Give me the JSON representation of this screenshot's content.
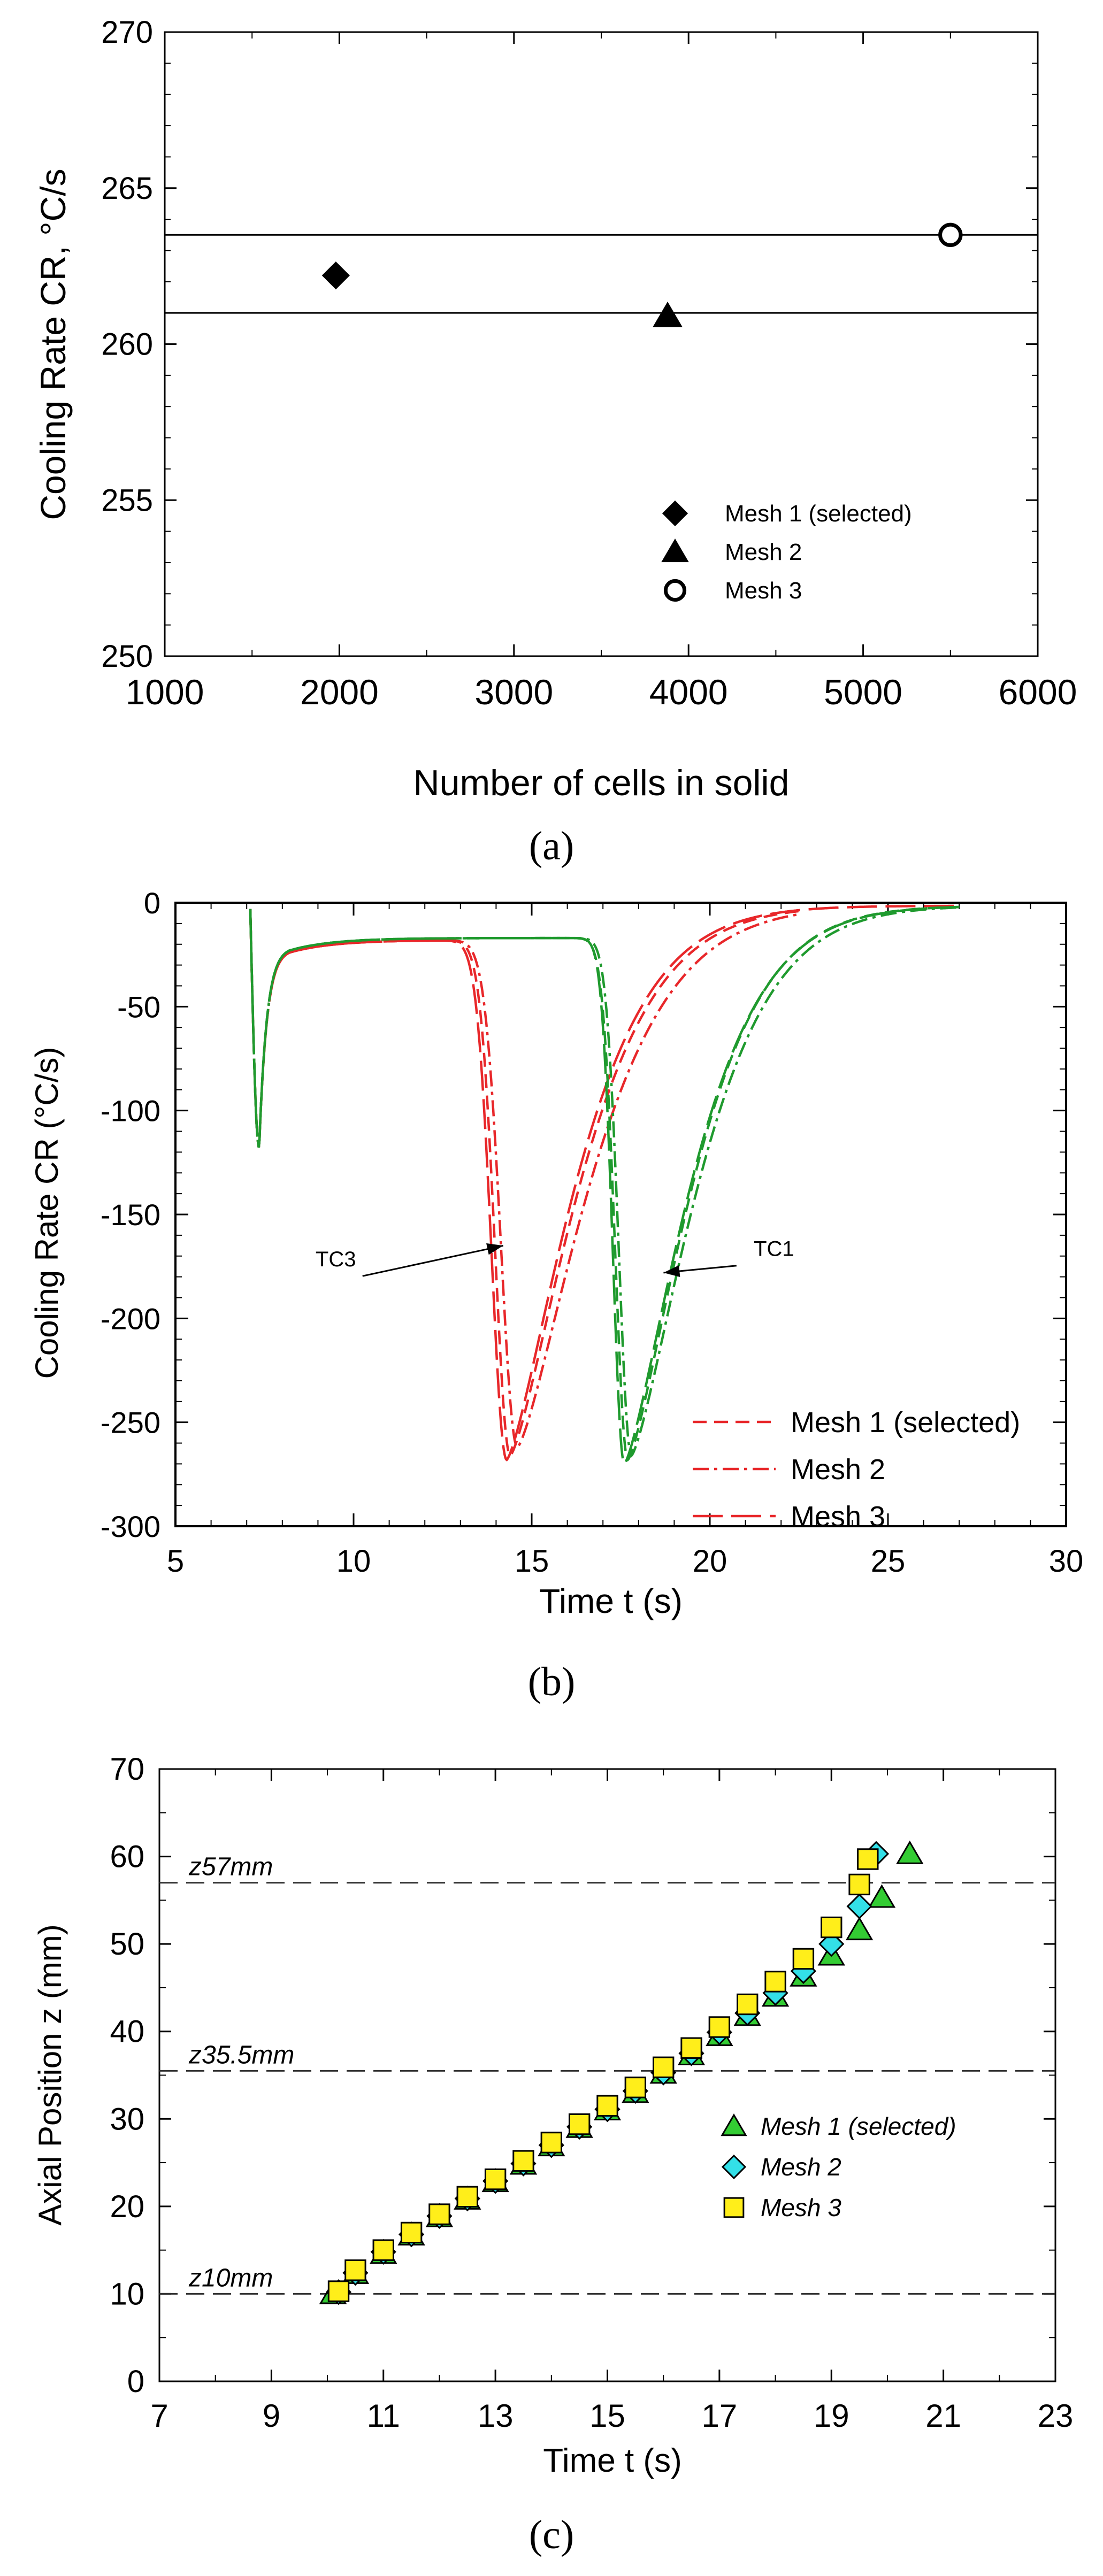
{
  "chart_data": [
    {
      "type": "scatter",
      "caption": "(a)",
      "xlabel": "Number of cells in solid",
      "ylabel": "Cooling Rate  CR,  °C/s",
      "xlim": [
        1000,
        6000
      ],
      "ylim": [
        250,
        270
      ],
      "xticks": [
        1000,
        2000,
        3000,
        4000,
        5000,
        6000
      ],
      "yticks": [
        250,
        255,
        260,
        265,
        270
      ],
      "reference_lines": [
        263.5,
        261.0
      ],
      "legend_position": "bottom-right",
      "series": [
        {
          "name": "Mesh 1 (selected)",
          "marker": "diamond",
          "x": [
            1980
          ],
          "y": [
            262.2
          ]
        },
        {
          "name": "Mesh 2",
          "marker": "triangle",
          "x": [
            3880
          ],
          "y": [
            260.9
          ]
        },
        {
          "name": "Mesh 3",
          "marker": "open-circle",
          "x": [
            5500
          ],
          "y": [
            263.5
          ]
        }
      ]
    },
    {
      "type": "line",
      "caption": "(b)",
      "xlabel": "Time  t (s)",
      "ylabel": "Cooling Rate  CR (°C/s)",
      "xlim": [
        5,
        30
      ],
      "ylim": [
        -300,
        0
      ],
      "xticks": [
        5,
        10,
        15,
        20,
        25,
        30
      ],
      "yticks": [
        0,
        -50,
        -100,
        -150,
        -200,
        -250,
        -300
      ],
      "legend_position": "bottom-right",
      "colors": {
        "TC3": "#e8272a",
        "TC1": "#1f9a2e"
      },
      "annotations": [
        {
          "text": "TC3",
          "x": 9.5,
          "y": -175,
          "arrow_to": [
            14.2,
            -165
          ]
        },
        {
          "text": "TC1",
          "x": 21.8,
          "y": -170,
          "arrow_to": [
            18.7,
            -178
          ]
        }
      ],
      "legend": [
        "Mesh 1 (selected)",
        "Mesh 2",
        "Mesh 3"
      ],
      "series": [
        {
          "name": "TC3 Mesh 1 (selected)",
          "curve": "TC3",
          "style": "dash",
          "t_start": 7.1,
          "t_end": 22.5,
          "plateau": -18,
          "t_min": 14.4,
          "cr_min": -266,
          "tau_in": 0.6,
          "tau_out": 2.6
        },
        {
          "name": "TC3 Mesh 2",
          "curve": "TC3",
          "style": "dashdot",
          "t_start": 7.1,
          "t_end": 22.5,
          "plateau": -18,
          "t_min": 14.6,
          "cr_min": -262,
          "tau_in": 0.65,
          "tau_out": 2.75
        },
        {
          "name": "TC3 Mesh 3",
          "curve": "TC3",
          "style": "longdash",
          "t_start": 7.1,
          "t_end": 27.0,
          "plateau": -18,
          "t_min": 14.3,
          "cr_min": -268,
          "tau_in": 0.6,
          "tau_out": 2.55
        },
        {
          "name": "TC1 Mesh 1 (selected)",
          "curve": "TC1",
          "style": "dash",
          "t_start": 7.1,
          "t_end": 27.0,
          "plateau": -17,
          "t_min": 17.7,
          "cr_min": -268,
          "tau_in": 0.5,
          "tau_out": 2.4
        },
        {
          "name": "TC1 Mesh 2",
          "curve": "TC1",
          "style": "dashdot",
          "t_start": 7.1,
          "t_end": 27.0,
          "plateau": -17,
          "t_min": 17.8,
          "cr_min": -266,
          "tau_in": 0.5,
          "tau_out": 2.5
        },
        {
          "name": "TC1 Mesh 3",
          "curve": "TC1",
          "style": "longdash",
          "t_start": 7.1,
          "t_end": 27.0,
          "plateau": -17,
          "t_min": 17.6,
          "cr_min": -270,
          "tau_in": 0.45,
          "tau_out": 2.45
        }
      ]
    },
    {
      "type": "scatter",
      "caption": "(c)",
      "xlabel": "Time  t (s)",
      "ylabel": "Axial Position  z (mm)",
      "xlim": [
        7,
        23
      ],
      "ylim": [
        0,
        70
      ],
      "xticks": [
        7,
        9,
        11,
        13,
        15,
        17,
        19,
        21,
        23
      ],
      "yticks": [
        0,
        10,
        20,
        30,
        40,
        50,
        60,
        70
      ],
      "reference_lines": [
        {
          "y": 57,
          "label": "z57mm"
        },
        {
          "y": 35.5,
          "label": "z35.5mm"
        },
        {
          "y": 10,
          "label": "z10mm"
        }
      ],
      "legend_position": "right",
      "series": [
        {
          "name": "Mesh 1 (selected)",
          "marker": "triangle",
          "color": "#33cc33",
          "x": [
            10.1,
            10.5,
            11.0,
            11.5,
            12.0,
            12.5,
            13.0,
            13.5,
            14.0,
            14.5,
            15.0,
            15.5,
            16.0,
            16.5,
            17.0,
            17.5,
            18.0,
            18.5,
            19.0,
            19.5,
            19.9,
            20.4
          ],
          "y": [
            10.0,
            12.3,
            14.6,
            16.7,
            18.8,
            20.8,
            22.8,
            24.8,
            26.9,
            29.0,
            31.0,
            33.0,
            35.2,
            37.3,
            39.5,
            41.8,
            44.0,
            46.3,
            48.7,
            51.6,
            55.3,
            60.3
          ]
        },
        {
          "name": "Mesh 2",
          "marker": "diamond",
          "color": "#33e0e8",
          "x": [
            10.2,
            10.5,
            11.0,
            11.5,
            12.0,
            12.5,
            13.0,
            13.5,
            14.0,
            14.5,
            15.0,
            15.5,
            16.0,
            16.5,
            17.0,
            17.5,
            18.0,
            18.5,
            19.0,
            19.5,
            19.8
          ],
          "y": [
            10.2,
            12.4,
            14.8,
            16.8,
            18.9,
            20.9,
            22.9,
            24.9,
            27.0,
            29.1,
            31.1,
            33.2,
            35.3,
            37.5,
            39.9,
            42.1,
            44.4,
            46.9,
            50.0,
            54.3,
            60.3
          ]
        },
        {
          "name": "Mesh 3",
          "marker": "square",
          "color": "#ffee1a",
          "x": [
            10.2,
            10.5,
            11.0,
            11.5,
            12.0,
            12.5,
            13.0,
            13.5,
            14.0,
            14.5,
            15.0,
            15.5,
            16.0,
            16.5,
            17.0,
            17.5,
            18.0,
            18.5,
            19.0,
            19.5,
            19.65
          ],
          "y": [
            10.3,
            12.7,
            15.0,
            17.0,
            19.1,
            21.1,
            23.1,
            25.2,
            27.3,
            29.4,
            31.5,
            33.6,
            35.9,
            38.1,
            40.5,
            43.1,
            45.7,
            48.3,
            51.9,
            56.8,
            59.7
          ]
        }
      ]
    }
  ]
}
